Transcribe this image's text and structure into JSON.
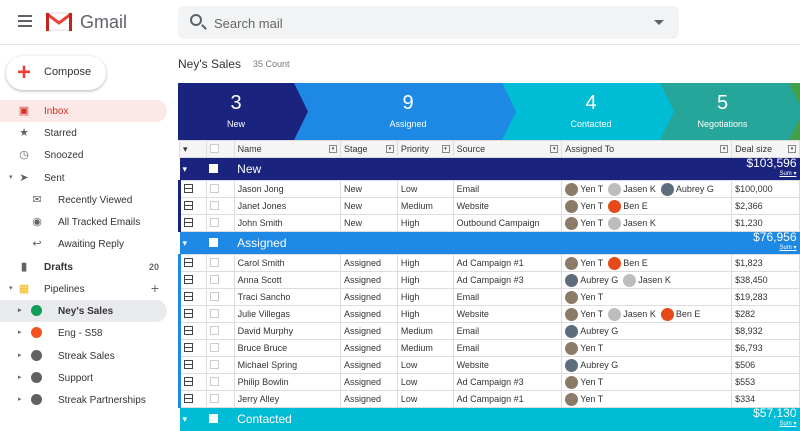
{
  "header": {
    "app_name": "Gmail",
    "search_placeholder": "Search mail"
  },
  "sidebar": {
    "compose_label": "Compose",
    "items": [
      {
        "label": "Inbox",
        "icon": "inbox-icon",
        "active": true
      },
      {
        "label": "Starred",
        "icon": "star-icon"
      },
      {
        "label": "Snoozed",
        "icon": "clock-icon"
      },
      {
        "label": "Sent",
        "icon": "send-icon"
      },
      {
        "label": "Recently Viewed",
        "icon": "envelope-open-icon"
      },
      {
        "label": "All Tracked Emails",
        "icon": "eye-icon"
      },
      {
        "label": "Awaiting Reply",
        "icon": "reply-icon"
      },
      {
        "label": "Drafts",
        "icon": "draft-icon",
        "count": "20"
      },
      {
        "label": "Pipelines",
        "icon": "pipelines-icon"
      }
    ],
    "pipelines": [
      {
        "label": "Ney's Sales",
        "color": "#0f9d58"
      },
      {
        "label": "Eng - S58",
        "color": "#f4511e"
      },
      {
        "label": "Streak Sales",
        "color": "#616161"
      },
      {
        "label": "Support",
        "color": "#616161"
      },
      {
        "label": "Streak Partnerships",
        "color": "#616161"
      }
    ]
  },
  "pipeline": {
    "title": "Ney's Sales",
    "count": "35 Count",
    "stages": [
      {
        "count": "3",
        "name": "New",
        "color": "#1a237e"
      },
      {
        "count": "9",
        "name": "Assigned",
        "color": "#1e88e5"
      },
      {
        "count": "4",
        "name": "Contacted",
        "color": "#00bcd4"
      },
      {
        "count": "5",
        "name": "Negotiations",
        "color": "#26a69a"
      }
    ],
    "columns": [
      "Name",
      "Stage",
      "Priority",
      "Source",
      "Assigned To",
      "Deal size"
    ],
    "groups": [
      {
        "name": "New",
        "sum": "$103,596",
        "sum_label": "Sum",
        "color": "#1a237e",
        "rows": [
          [
            "Jason Jong",
            "New",
            "Low",
            "Email",
            [
              "Yen T",
              "Jasen K",
              "Aubrey G"
            ],
            "$100,000"
          ],
          [
            "Janet Jones",
            "New",
            "Medium",
            "Website",
            [
              "Yen T",
              "Ben E"
            ],
            "$2,366"
          ],
          [
            "John Smith",
            "New",
            "High",
            "Outbound Campaign",
            [
              "Yen T",
              "Jasen K"
            ],
            "$1,230"
          ]
        ]
      },
      {
        "name": "Assigned",
        "sum": "$76,956",
        "sum_label": "Sum",
        "color": "#1e88e5",
        "rows": [
          [
            "Carol Smith",
            "Assigned",
            "High",
            "Ad Campaign #1",
            [
              "Yen T",
              "Ben E"
            ],
            "$1,823"
          ],
          [
            "Anna Scott",
            "Assigned",
            "High",
            "Ad Campaign #3",
            [
              "Aubrey G",
              "Jasen K"
            ],
            "$38,450"
          ],
          [
            "Traci Sancho",
            "Assigned",
            "High",
            "Email",
            [
              "Yen T"
            ],
            "$19,283"
          ],
          [
            "Julie Villegas",
            "Assigned",
            "High",
            "Website",
            [
              "Yen T",
              "Jasen K",
              "Ben E"
            ],
            "$282"
          ],
          [
            "David Murphy",
            "Assigned",
            "Medium",
            "Email",
            [
              "Aubrey G"
            ],
            "$8,932"
          ],
          [
            "Bruce Bruce",
            "Assigned",
            "Medium",
            "Email",
            [
              "Yen T"
            ],
            "$6,793"
          ],
          [
            "Michael Spring",
            "Assigned",
            "Low",
            "Website",
            [
              "Aubrey G"
            ],
            "$506"
          ],
          [
            "Philip Bowlin",
            "Assigned",
            "Low",
            "Ad Campaign #3",
            [
              "Yen T"
            ],
            "$553"
          ],
          [
            "Jerry Alley",
            "Assigned",
            "Low",
            "Ad Campaign #1",
            [
              "Yen T"
            ],
            "$334"
          ]
        ]
      },
      {
        "name": "Contacted",
        "sum": "$57,130",
        "sum_label": "Sum",
        "color": "#00bcd4",
        "rows": []
      }
    ]
  }
}
